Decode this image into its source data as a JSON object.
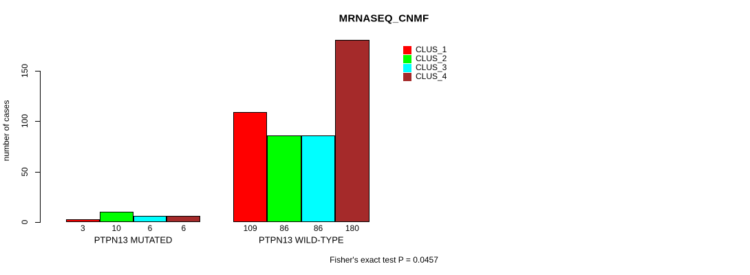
{
  "chart_data": {
    "type": "bar",
    "title": "MRNASEQ_CNMF",
    "ylabel": "number of cases",
    "xlabel": "",
    "categories": [
      "PTPN13 MUTATED",
      "PTPN13 WILD-TYPE"
    ],
    "series": [
      {
        "name": "CLUS_1",
        "color": "#ff0000",
        "values": [
          3,
          109
        ]
      },
      {
        "name": "CLUS_2",
        "color": "#00ff00",
        "values": [
          10,
          86
        ]
      },
      {
        "name": "CLUS_3",
        "color": "#00ffff",
        "values": [
          6,
          86
        ]
      },
      {
        "name": "CLUS_4",
        "color": "#a52a2a",
        "values": [
          6,
          180
        ]
      }
    ],
    "bar_value_labels": [
      [
        "3",
        "10",
        "6",
        "6"
      ],
      [
        "109",
        "86",
        "86",
        "180"
      ]
    ],
    "yticks": [
      "0",
      "50",
      "100",
      "150"
    ],
    "ytick_values": [
      0,
      50,
      100,
      150
    ],
    "ylim": [
      0,
      180
    ],
    "grid": false,
    "legend_position": "top-right",
    "bar_outline_color": "#000000",
    "axis_color": "#000000",
    "background_color": "#ffffff",
    "annotation": "Fisher's exact test P = 0.0457"
  }
}
